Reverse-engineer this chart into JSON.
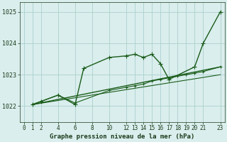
{
  "title": "Graphe pression niveau de la mer (hPa)",
  "bg_color": "#daeeed",
  "grid_color": "#aacfcf",
  "line_color": "#1a5c1a",
  "xlim": [
    -0.5,
    23.5
  ],
  "ylim": [
    1021.5,
    1025.3
  ],
  "yticks": [
    1022,
    1023,
    1024,
    1025
  ],
  "xticks": [
    0,
    1,
    2,
    4,
    6,
    8,
    10,
    12,
    13,
    14,
    15,
    16,
    17,
    18,
    19,
    20,
    21,
    23
  ],
  "series": [
    {
      "x": [
        1,
        2,
        4,
        6,
        7,
        10,
        12,
        13,
        14,
        15,
        16,
        17,
        20,
        21,
        23
      ],
      "y": [
        1022.05,
        1022.15,
        1022.35,
        1022.05,
        1023.2,
        1023.55,
        1023.6,
        1023.65,
        1023.55,
        1023.65,
        1023.35,
        1022.85,
        1023.25,
        1024.0,
        1025.0
      ],
      "marker": "+",
      "markersize": 4,
      "linewidth": 1.0,
      "zorder": 3
    },
    {
      "x": [
        1,
        2,
        4,
        6,
        10,
        12,
        13,
        14,
        15,
        16,
        17,
        18,
        19,
        20,
        21,
        23
      ],
      "y": [
        1022.05,
        1022.15,
        1022.35,
        1022.1,
        1022.5,
        1022.6,
        1022.65,
        1022.7,
        1022.8,
        1022.85,
        1022.9,
        1022.95,
        1023.0,
        1023.05,
        1023.1,
        1023.25
      ],
      "marker": "+",
      "markersize": 3,
      "linewidth": 0.8,
      "zorder": 2
    },
    {
      "x": [
        1,
        23
      ],
      "y": [
        1022.05,
        1023.25
      ],
      "marker": null,
      "markersize": 0,
      "linewidth": 1.0,
      "zorder": 1
    },
    {
      "x": [
        1,
        23
      ],
      "y": [
        1022.05,
        1023.0
      ],
      "marker": null,
      "markersize": 0,
      "linewidth": 0.8,
      "zorder": 1
    }
  ]
}
